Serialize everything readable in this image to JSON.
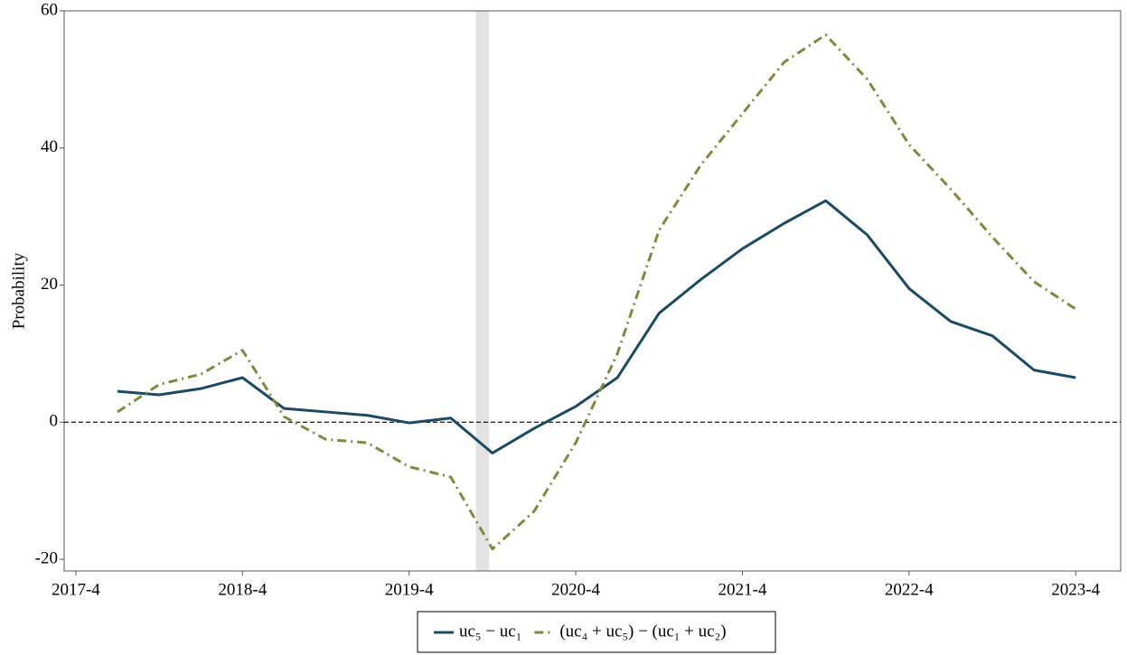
{
  "chart_data": {
    "type": "line",
    "y_label": "Probability",
    "x": [
      2017.5,
      2017.75,
      2018.0,
      2018.25,
      2018.5,
      2018.75,
      2019.0,
      2019.25,
      2019.5,
      2019.75,
      2020.0,
      2020.25,
      2020.5,
      2020.75,
      2021.0,
      2021.25,
      2021.5,
      2021.75,
      2022.0,
      2022.25,
      2022.5,
      2022.75,
      2023.0,
      2023.25
    ],
    "series": [
      {
        "name": "uc₅ − uc₁",
        "color": "#1b4a63",
        "dash": "solid",
        "values": [
          4.5,
          4.0,
          4.9,
          6.5,
          2.0,
          1.5,
          1.0,
          -0.1,
          0.6,
          -4.5,
          -0.9,
          2.3,
          6.5,
          15.9,
          20.8,
          25.3,
          29.0,
          32.3,
          27.3,
          19.5,
          14.7,
          12.6,
          7.6,
          6.5
        ]
      },
      {
        "name": "(uc₄ + uc₅) − (uc₁ + uc₂)",
        "color": "#7d8c3c",
        "dash": "dashdot",
        "values": [
          1.5,
          5.5,
          7.0,
          10.5,
          0.8,
          -2.5,
          -3.0,
          -6.5,
          -8.0,
          -18.5,
          -13.0,
          -3.0,
          10.0,
          28.0,
          37.5,
          45.0,
          52.5,
          56.5,
          50.0,
          40.5,
          34.0,
          27.0,
          20.5,
          16.5
        ]
      }
    ],
    "xlim": [
      2017.18,
      2023.52
    ],
    "xticks": [
      {
        "value": 2017.25,
        "label": "2017-4"
      },
      {
        "value": 2018.25,
        "label": "2018-4"
      },
      {
        "value": 2019.25,
        "label": "2019-4"
      },
      {
        "value": 2020.25,
        "label": "2020-4"
      },
      {
        "value": 2021.25,
        "label": "2021-4"
      },
      {
        "value": 2022.25,
        "label": "2022-4"
      },
      {
        "value": 2023.25,
        "label": "2023-4"
      }
    ],
    "ylim": [
      -21.7,
      60
    ],
    "yticks": [
      -20,
      0,
      20,
      40,
      60
    ],
    "reference_line": 0,
    "shaded_region": [
      2019.65,
      2019.73
    ],
    "shade_color": "#e3e3e3",
    "grid": false,
    "legend": "bottom"
  }
}
